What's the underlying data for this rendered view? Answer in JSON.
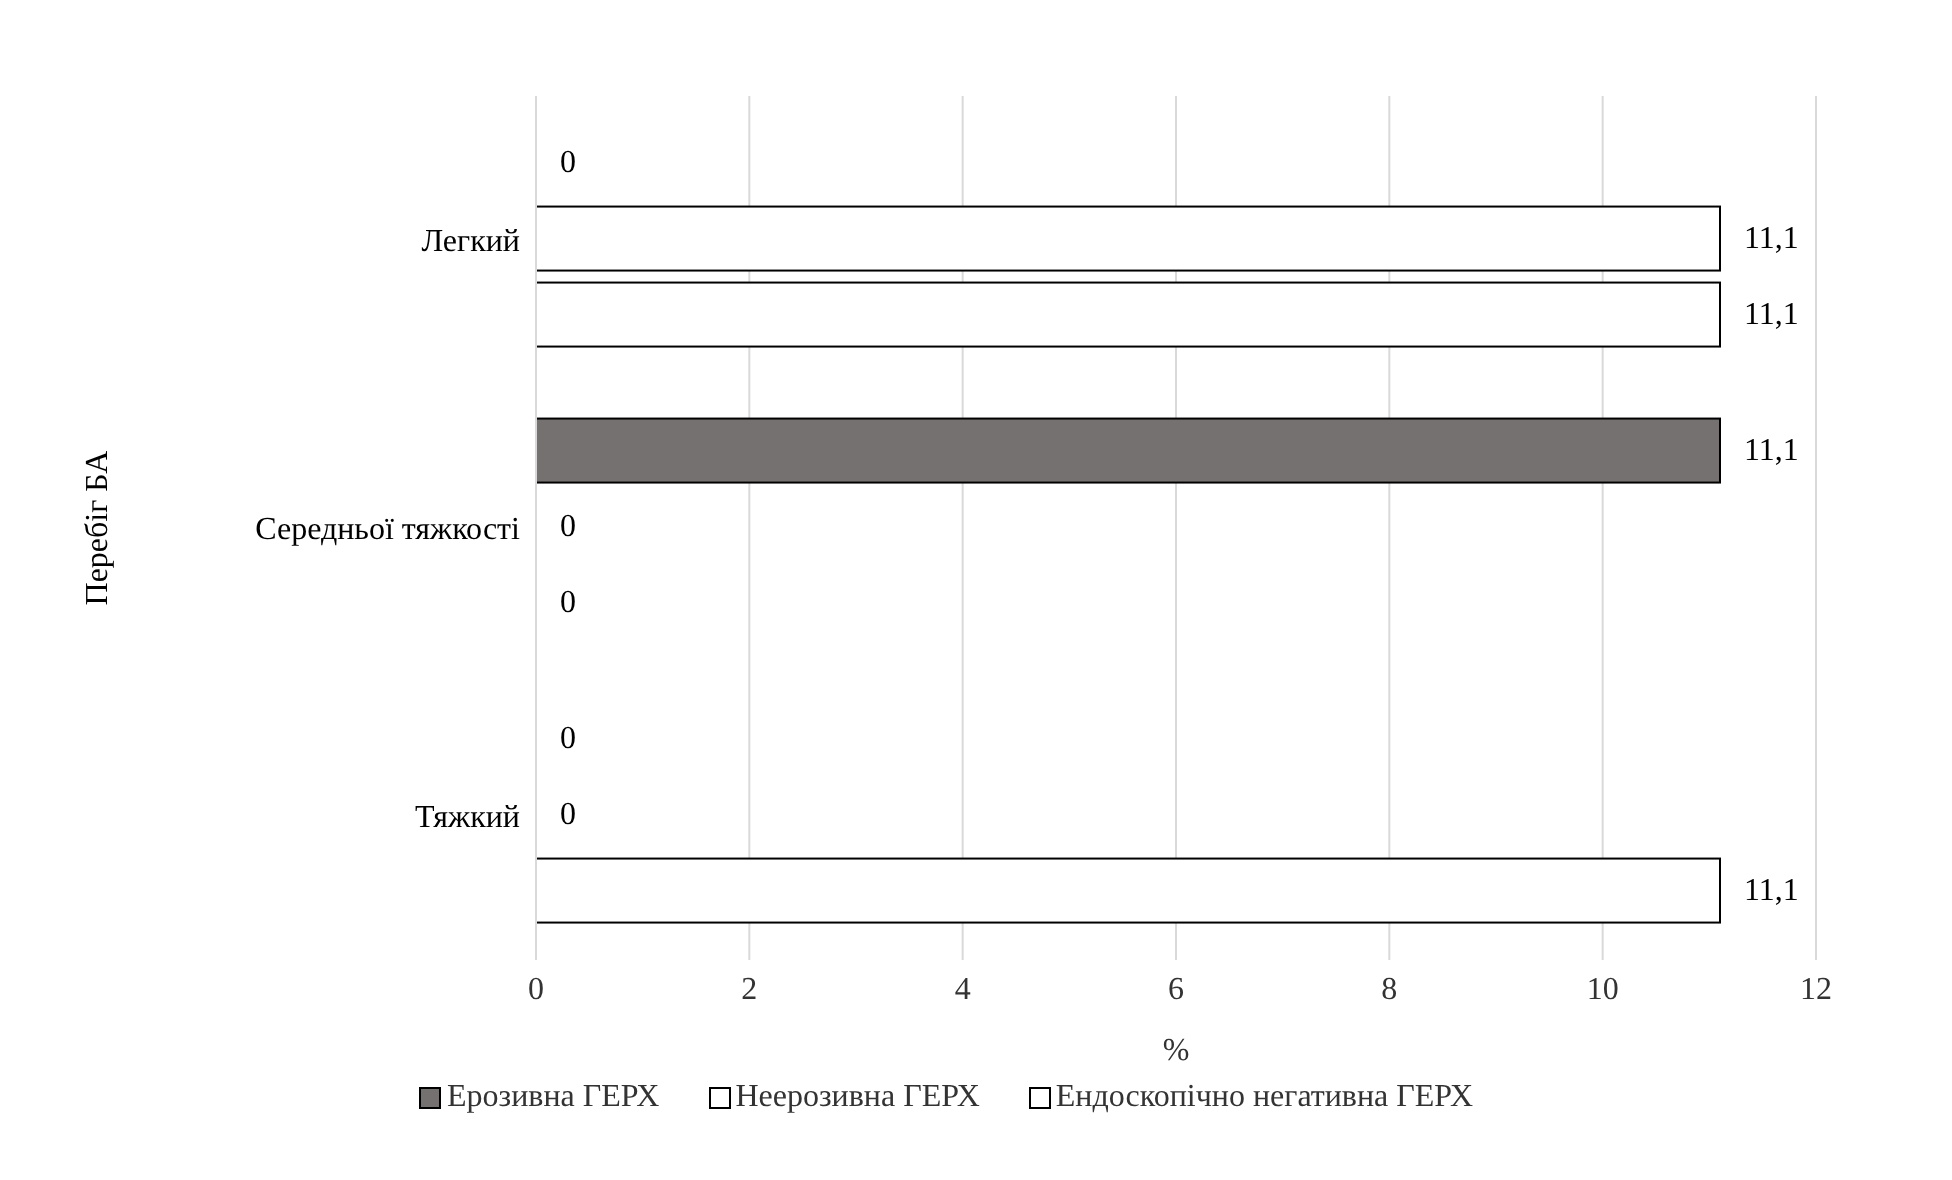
{
  "chart_data": {
    "type": "bar",
    "orientation": "horizontal",
    "ylabel": "Перебіг БА",
    "xlabel": "%",
    "categories": [
      "Легкий",
      "Середньої тяжкості",
      "Тяжкий"
    ],
    "series": [
      {
        "name": "Ерозивна ГЕРХ",
        "color": "#767171",
        "values": [
          0,
          11.1,
          0
        ],
        "value_labels": [
          "0",
          "11,1",
          "0"
        ]
      },
      {
        "name": "Неерозивна ГЕРХ",
        "color": "#ffffff",
        "values": [
          11.1,
          0,
          0
        ],
        "value_labels": [
          "11,1",
          "0",
          "0"
        ]
      },
      {
        "name": "Ендоскопічно негативна ГЕРХ",
        "color": "#ffffff",
        "values": [
          11.1,
          0,
          11.1
        ],
        "value_labels": [
          "11,1",
          "0",
          "11,1"
        ]
      }
    ],
    "xlim": [
      0,
      12
    ],
    "xticks": [
      0,
      2,
      4,
      6,
      8,
      10,
      12
    ],
    "grid": "x",
    "legend": "bottom"
  }
}
